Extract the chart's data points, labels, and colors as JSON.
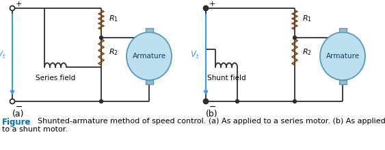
{
  "figure_label_color": "#0070C0",
  "figure_label_text": "Figure",
  "figure_caption": "Shunted-armature method of speed control. (a) As applied to a series motor. (b) As applied\nto a shunt motor.",
  "caption_color": "#000000",
  "label_a": "(a)",
  "label_b": "(b)",
  "V1_label": "$V_t$",
  "R1_label": "$R_1$",
  "R2_label": "$R_2$",
  "armature_label": "Armature",
  "series_field_label": "Series field",
  "shunt_field_label": "Shunt field",
  "line_color": "#2d2d2d",
  "arrow_color": "#3399FF",
  "armature_fill": "#BDE0F0",
  "armature_edge": "#5599BB",
  "node_color": "#2d2d2d",
  "bg_color": "#ffffff",
  "resistor_color": "#8B4513",
  "tab_fill": "#99BBCC"
}
